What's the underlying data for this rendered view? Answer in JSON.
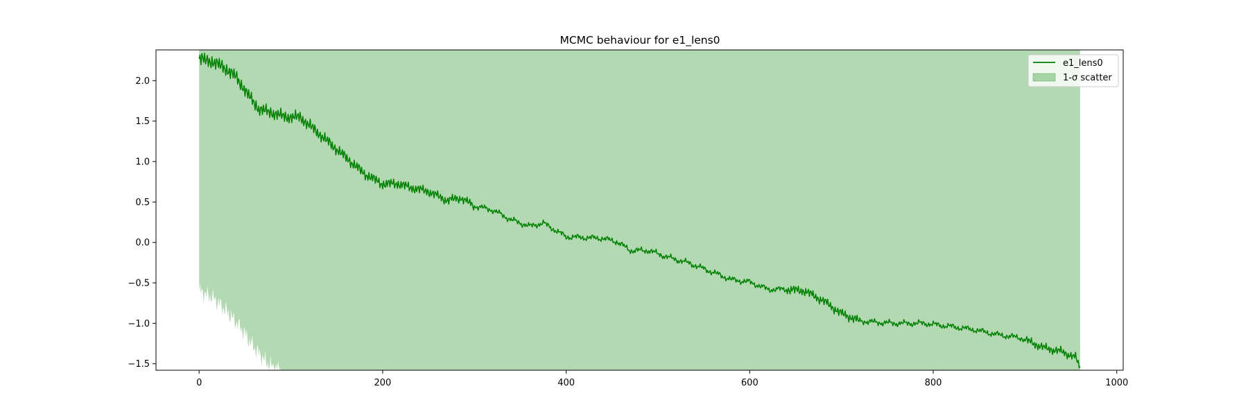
{
  "chart_data": {
    "type": "line",
    "title": "MCMC behaviour for e1_lens0",
    "xlabel": "",
    "ylabel": "",
    "xlim": [
      -47,
      1007
    ],
    "ylim": [
      -1.58,
      2.38
    ],
    "xticks": [
      0,
      200,
      400,
      600,
      800,
      1000
    ],
    "yticks": [
      -1.5,
      -1.0,
      -0.5,
      0.0,
      0.5,
      1.0,
      1.5,
      2.0
    ],
    "xtick_labels": [
      "0",
      "200",
      "400",
      "600",
      "800",
      "1000"
    ],
    "ytick_labels": [
      "−1.5",
      "−1.0",
      "−0.5",
      "0.0",
      "0.5",
      "1.0",
      "1.5",
      "2.0"
    ],
    "grid": false,
    "legend_position": "top-right",
    "legend": [
      "e1_lens0",
      "1-σ scatter"
    ],
    "n_steps": 960,
    "series": [
      {
        "name": "e1_lens0",
        "color": "#008000",
        "kind": "line",
        "anchors": [
          [
            0,
            2.27
          ],
          [
            10,
            2.25
          ],
          [
            25,
            2.18
          ],
          [
            40,
            2.05
          ],
          [
            55,
            1.8
          ],
          [
            65,
            1.65
          ],
          [
            80,
            1.6
          ],
          [
            95,
            1.55
          ],
          [
            110,
            1.55
          ],
          [
            130,
            1.35
          ],
          [
            150,
            1.15
          ],
          [
            165,
            1.0
          ],
          [
            180,
            0.85
          ],
          [
            200,
            0.72
          ],
          [
            215,
            0.73
          ],
          [
            230,
            0.68
          ],
          [
            250,
            0.63
          ],
          [
            270,
            0.52
          ],
          [
            285,
            0.55
          ],
          [
            300,
            0.45
          ],
          [
            320,
            0.4
          ],
          [
            340,
            0.28
          ],
          [
            360,
            0.2
          ],
          [
            375,
            0.24
          ],
          [
            400,
            0.07
          ],
          [
            420,
            0.06
          ],
          [
            440,
            0.05
          ],
          [
            455,
            0.01
          ],
          [
            470,
            -0.1
          ],
          [
            490,
            -0.1
          ],
          [
            510,
            -0.18
          ],
          [
            535,
            -0.26
          ],
          [
            560,
            -0.37
          ],
          [
            580,
            -0.46
          ],
          [
            600,
            -0.49
          ],
          [
            620,
            -0.58
          ],
          [
            640,
            -0.58
          ],
          [
            660,
            -0.6
          ],
          [
            680,
            -0.72
          ],
          [
            700,
            -0.88
          ],
          [
            720,
            -0.97
          ],
          [
            740,
            -0.99
          ],
          [
            760,
            -1.0
          ],
          [
            790,
            -1.0
          ],
          [
            820,
            -1.04
          ],
          [
            845,
            -1.08
          ],
          [
            870,
            -1.14
          ],
          [
            895,
            -1.18
          ],
          [
            920,
            -1.3
          ],
          [
            940,
            -1.35
          ],
          [
            955,
            -1.42
          ],
          [
            960,
            -1.55
          ]
        ]
      },
      {
        "name": "1-σ scatter",
        "color": "#008000",
        "alpha": 0.3,
        "kind": "band",
        "upper": 2.38,
        "lower_anchors": [
          [
            0,
            -0.6
          ],
          [
            15,
            -0.68
          ],
          [
            30,
            -0.85
          ],
          [
            45,
            -1.05
          ],
          [
            60,
            -1.3
          ],
          [
            75,
            -1.5
          ],
          [
            88,
            -1.58
          ]
        ],
        "lower_floor": -1.58
      }
    ]
  }
}
